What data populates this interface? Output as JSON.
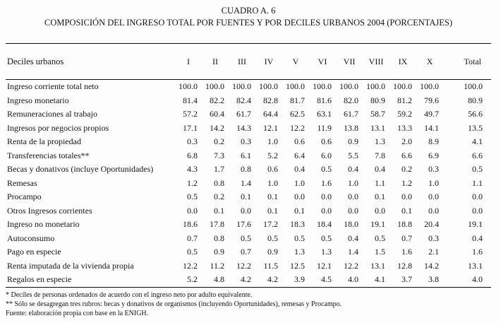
{
  "title": {
    "line1": "CUADRO A. 6",
    "line2": "COMPOSICIÓN DEL INGRESO TOTAL POR FUENTES Y POR DECILES URBANOS 2004 (PORCENTAJES)"
  },
  "table": {
    "row_header_label": "Deciles urbanos",
    "columns": [
      "I",
      "II",
      "III",
      "IV",
      "V",
      "VI",
      "VII",
      "VIII",
      "IX",
      "X",
      "Total"
    ],
    "rows": [
      {
        "label": "Ingreso corriente total neto",
        "values": [
          "100.0",
          "100.0",
          "100.0",
          "100.0",
          "100.0",
          "100.0",
          "100.0",
          "100.0",
          "100.0",
          "100.0",
          "100.0"
        ]
      },
      {
        "label": "Ingreso monetario",
        "values": [
          "81.4",
          "82.2",
          "82.4",
          "82.8",
          "81.7",
          "81.6",
          "82.0",
          "80.9",
          "81.2",
          "79.6",
          "80.9"
        ]
      },
      {
        "label": "Remuneraciones al trabajo",
        "values": [
          "57.2",
          "60.4",
          "61.7",
          "64.4",
          "62.5",
          "63.1",
          "61.7",
          "58.7",
          "59.2",
          "49.7",
          "56.6"
        ]
      },
      {
        "label": "Ingresos por negocios propios",
        "values": [
          "17.1",
          "14.2",
          "14.3",
          "12.1",
          "12.2",
          "11.9",
          "13.8",
          "13.1",
          "13.3",
          "14.1",
          "13.5"
        ]
      },
      {
        "label": "Renta de la propiedad",
        "values": [
          "0.3",
          "0.2",
          "0.3",
          "1.0",
          "0.6",
          "0.6",
          "0.9",
          "1.3",
          "2.0",
          "8.9",
          "4.1"
        ]
      },
      {
        "label": "Transferencias totales**",
        "values": [
          "6.8",
          "7.3",
          "6.1",
          "5.2",
          "6.4",
          "6.0",
          "5.5",
          "7.8",
          "6.6",
          "6.9",
          "6.6"
        ]
      },
      {
        "label": "Becas y donativos (incluye Oportunidades)",
        "values": [
          "4.3",
          "1.7",
          "0.8",
          "0.6",
          "0.4",
          "0.5",
          "0.4",
          "0.4",
          "0.2",
          "0.3",
          "0.5"
        ]
      },
      {
        "label": "Remesas",
        "values": [
          "1.2",
          "0.8",
          "1.4",
          "1.0",
          "1.0",
          "1.6",
          "1.0",
          "1.1",
          "1.2",
          "1.0",
          "1.1"
        ]
      },
      {
        "label": "Procampo",
        "values": [
          "0.5",
          "0.2",
          "0.1",
          "0.1",
          "0.0",
          "0.0",
          "0.0",
          "0.1",
          "0.0",
          "0.0",
          "0.0"
        ]
      },
      {
        "label": "Otros Ingresos corrientes",
        "values": [
          "0.0",
          "0.1",
          "0.0",
          "0.1",
          "0.1",
          "0.0",
          "0.0",
          "0.0",
          "0.1",
          "0.0",
          "0.0"
        ]
      },
      {
        "label": "Ingreso no monetario",
        "values": [
          "18.6",
          "17.8",
          "17.6",
          "17.2",
          "18.3",
          "18.4",
          "18.0",
          "19.1",
          "18.8",
          "20.4",
          "19.1"
        ]
      },
      {
        "label": "Autoconsumo",
        "values": [
          "0.7",
          "0.8",
          "0.5",
          "0.5",
          "0.5",
          "0.5",
          "0.4",
          "0.5",
          "0.7",
          "0.3",
          "0.4"
        ]
      },
      {
        "label": "Pago en especie",
        "values": [
          "0.5",
          "0.9",
          "0.7",
          "0.9",
          "1.3",
          "1.3",
          "1.4",
          "1.5",
          "1.6",
          "2.1",
          "1.6"
        ]
      },
      {
        "label": "Renta imputada de la vivienda propia",
        "values": [
          "12.2",
          "11.2",
          "12.2",
          "11.5",
          "12.5",
          "12.1",
          "12.2",
          "13.1",
          "12.8",
          "14.2",
          "13.1"
        ]
      },
      {
        "label": "Regalos en especie",
        "values": [
          "5.2",
          "4.8",
          "4.2",
          "4.2",
          "3.9",
          "4.5",
          "4.0",
          "4.1",
          "3.7",
          "3.8",
          "4.0"
        ]
      }
    ]
  },
  "footnotes": [
    "* Deciles de personas ordenados de acuerdo con el ingreso neto por adulto equivalente.",
    "** Sólo se desagregan tres rubros: becas y donativos de organismos (incluyendo Oportunidades), remesas y Procampo.",
    "Fuente: elaboración propia con base en la ENIGH."
  ],
  "colors": {
    "background": "#fdfdfd",
    "text": "#151515",
    "rule": "#0a0a0a"
  }
}
